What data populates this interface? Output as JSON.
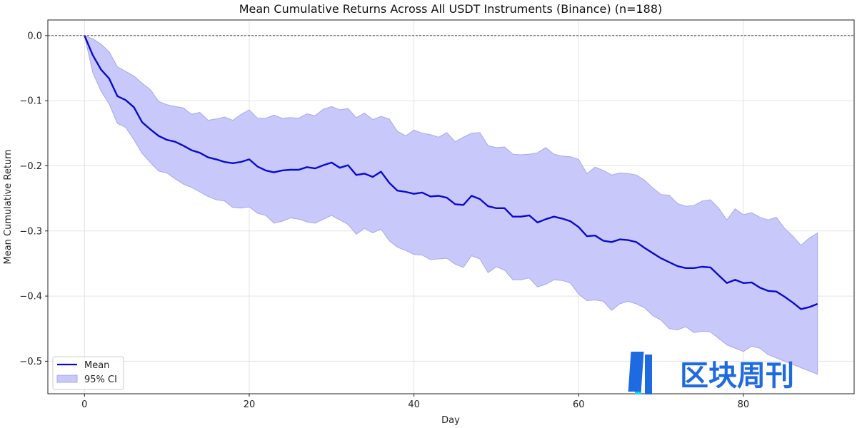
{
  "chart_data": {
    "type": "line",
    "title": "Mean Cumulative Returns Across All USDT Instruments (Binance) (n=188)",
    "xlabel": "Day",
    "ylabel": "Mean Cumulative Return",
    "xlim": [
      -4.45,
      93.45
    ],
    "ylim": [
      -0.55,
      0.024
    ],
    "xticks": [
      0,
      20,
      40,
      60,
      80
    ],
    "xtick_labels": [
      "0",
      "20",
      "40",
      "60",
      "80"
    ],
    "yticks": [
      0.0,
      -0.1,
      -0.2,
      -0.3,
      -0.4,
      -0.5
    ],
    "ytick_labels": [
      "0.0",
      "−0.1",
      "−0.2",
      "−0.3",
      "−0.4",
      "−0.5"
    ],
    "grid": true,
    "reference_line": {
      "y": 0,
      "style": "dashed",
      "color": "#000000"
    },
    "legend": {
      "placement": "bottom-left",
      "entries": [
        "Mean",
        "95% CI"
      ]
    },
    "colors": {
      "mean": "#0a0acc",
      "ci_fill": "#c8c8fa",
      "ci_edge": "#a8a8ee"
    },
    "series": [
      {
        "name": "Mean",
        "values": [
          0,
          -0.03,
          -0.052,
          -0.066,
          -0.093,
          -0.099,
          -0.11,
          -0.133,
          -0.144,
          -0.154,
          -0.16,
          -0.163,
          -0.169,
          -0.176,
          -0.18,
          -0.187,
          -0.19,
          -0.194,
          -0.196,
          -0.194,
          -0.19,
          -0.201,
          -0.207,
          -0.21,
          -0.207,
          -0.206,
          -0.206,
          -0.202,
          -0.204,
          -0.199,
          -0.195,
          -0.203,
          -0.199,
          -0.214,
          -0.212,
          -0.217,
          -0.209,
          -0.226,
          -0.238,
          -0.24,
          -0.243,
          -0.241,
          -0.247,
          -0.246,
          -0.249,
          -0.259,
          -0.26,
          -0.246,
          -0.251,
          -0.262,
          -0.265,
          -0.265,
          -0.278,
          -0.278,
          -0.276,
          -0.287,
          -0.282,
          -0.278,
          -0.281,
          -0.285,
          -0.294,
          -0.308,
          -0.307,
          -0.315,
          -0.317,
          -0.313,
          -0.314,
          -0.317,
          -0.326,
          -0.334,
          -0.342,
          -0.348,
          -0.354,
          -0.357,
          -0.357,
          -0.355,
          -0.356,
          -0.368,
          -0.38,
          -0.375,
          -0.38,
          -0.379,
          -0.387,
          -0.392,
          -0.393,
          -0.401,
          -0.41,
          -0.42,
          -0.417,
          -0.412
        ]
      },
      {
        "name": "95% CI upper",
        "values": [
          0,
          -0.005,
          -0.013,
          -0.025,
          -0.048,
          -0.055,
          -0.062,
          -0.073,
          -0.083,
          -0.101,
          -0.106,
          -0.109,
          -0.111,
          -0.121,
          -0.118,
          -0.13,
          -0.128,
          -0.125,
          -0.13,
          -0.121,
          -0.114,
          -0.127,
          -0.127,
          -0.122,
          -0.127,
          -0.126,
          -0.127,
          -0.12,
          -0.123,
          -0.113,
          -0.109,
          -0.114,
          -0.112,
          -0.126,
          -0.119,
          -0.129,
          -0.124,
          -0.128,
          -0.147,
          -0.154,
          -0.145,
          -0.15,
          -0.152,
          -0.156,
          -0.149,
          -0.163,
          -0.156,
          -0.15,
          -0.149,
          -0.169,
          -0.172,
          -0.171,
          -0.182,
          -0.183,
          -0.182,
          -0.18,
          -0.172,
          -0.182,
          -0.185,
          -0.186,
          -0.19,
          -0.212,
          -0.202,
          -0.207,
          -0.214,
          -0.211,
          -0.212,
          -0.214,
          -0.222,
          -0.234,
          -0.244,
          -0.245,
          -0.258,
          -0.262,
          -0.261,
          -0.254,
          -0.252,
          -0.265,
          -0.283,
          -0.266,
          -0.275,
          -0.272,
          -0.279,
          -0.283,
          -0.279,
          -0.296,
          -0.308,
          -0.322,
          -0.311,
          -0.303
        ]
      },
      {
        "name": "95% CI lower",
        "values": [
          0,
          -0.057,
          -0.085,
          -0.105,
          -0.135,
          -0.141,
          -0.16,
          -0.181,
          -0.195,
          -0.208,
          -0.211,
          -0.22,
          -0.228,
          -0.233,
          -0.24,
          -0.247,
          -0.252,
          -0.254,
          -0.264,
          -0.265,
          -0.263,
          -0.273,
          -0.276,
          -0.288,
          -0.285,
          -0.28,
          -0.282,
          -0.286,
          -0.288,
          -0.282,
          -0.276,
          -0.283,
          -0.29,
          -0.305,
          -0.296,
          -0.303,
          -0.297,
          -0.315,
          -0.325,
          -0.33,
          -0.336,
          -0.337,
          -0.344,
          -0.343,
          -0.342,
          -0.351,
          -0.356,
          -0.338,
          -0.343,
          -0.364,
          -0.355,
          -0.36,
          -0.375,
          -0.375,
          -0.372,
          -0.386,
          -0.382,
          -0.375,
          -0.376,
          -0.38,
          -0.397,
          -0.407,
          -0.406,
          -0.408,
          -0.422,
          -0.412,
          -0.408,
          -0.412,
          -0.418,
          -0.43,
          -0.437,
          -0.45,
          -0.452,
          -0.447,
          -0.456,
          -0.454,
          -0.455,
          -0.465,
          -0.475,
          -0.48,
          -0.485,
          -0.477,
          -0.48,
          -0.49,
          -0.495,
          -0.5,
          -0.505,
          -0.51,
          -0.515,
          -0.52
        ]
      }
    ]
  },
  "watermark": {
    "text": "区块周刊",
    "icon": "logo-bars-icon"
  }
}
